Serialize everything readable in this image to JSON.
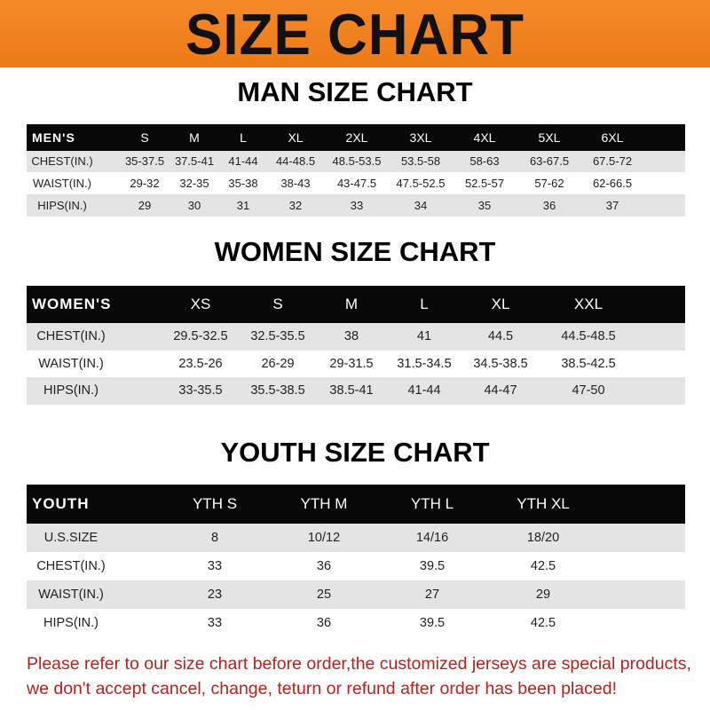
{
  "banner": {
    "title": "SIZE CHART",
    "color": "#ef7f1c"
  },
  "men": {
    "title": "MAN SIZE CHART",
    "header": [
      "MEN'S",
      "S",
      "M",
      "L",
      "XL",
      "2XL",
      "3XL",
      "4XL",
      "5XL",
      "6XL"
    ],
    "rows": [
      [
        "CHEST(IN.)",
        "35-37.5",
        "37.5-41",
        "41-44",
        "44-48.5",
        "48.5-53.5",
        "53.5-58",
        "58-63",
        "63-67.5",
        "67.5-72"
      ],
      [
        "WAIST(IN.)",
        "29-32",
        "32-35",
        "35-38",
        "38-43",
        "43-47.5",
        "47.5-52.5",
        "52.5-57",
        "57-62",
        "62-66.5"
      ],
      [
        "HIPS(IN.)",
        "29",
        "30",
        "31",
        "32",
        "33",
        "34",
        "35",
        "36",
        "37"
      ]
    ]
  },
  "women": {
    "title": "WOMEN SIZE CHART",
    "header": [
      "WOMEN'S",
      "XS",
      "S",
      "M",
      "L",
      "XL",
      "XXL"
    ],
    "rows": [
      [
        "CHEST(IN.)",
        "29.5-32.5",
        "32.5-35.5",
        "38",
        "41",
        "44.5",
        "44.5-48.5"
      ],
      [
        "WAIST(IN.)",
        "23.5-26",
        "26-29",
        "29-31.5",
        "31.5-34.5",
        "34.5-38.5",
        "38.5-42.5"
      ],
      [
        "HIPS(IN.)",
        "33-35.5",
        "35.5-38.5",
        "38.5-41",
        "41-44",
        "44-47",
        "47-50"
      ]
    ]
  },
  "youth": {
    "title": "YOUTH SIZE CHART",
    "header": [
      "YOUTH",
      "YTH S",
      "YTH M",
      "YTH L",
      "YTH XL"
    ],
    "rows": [
      [
        "U.S.SIZE",
        "8",
        "10/12",
        "14/16",
        "18/20"
      ],
      [
        "CHEST(IN.)",
        "33",
        "36",
        "39.5",
        "42.5"
      ],
      [
        "WAIST(IN.)",
        "23",
        "25",
        "27",
        "29"
      ],
      [
        "HIPS(IN.)",
        "33",
        "36",
        "39.5",
        "42.5"
      ]
    ]
  },
  "footer": {
    "line1": "Please refer to our size chart before order,the customized jerseys are special products,",
    "line2": "we don't accept cancel, change, teturn or refund after order has been placed!",
    "color": "#b3231f"
  }
}
